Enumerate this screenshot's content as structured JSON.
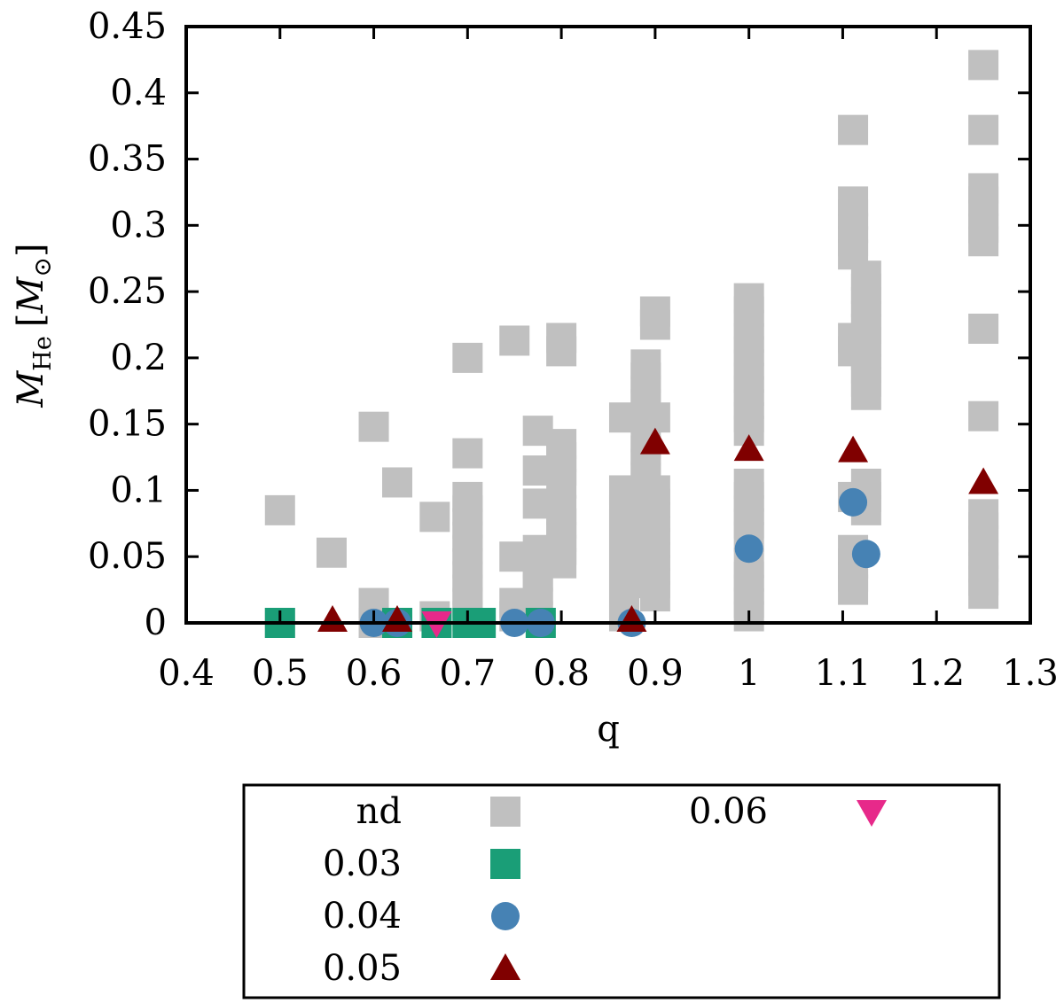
{
  "chart_data": {
    "type": "scatter",
    "xlabel": "q",
    "ylabel": {
      "main": "M",
      "sub": "He",
      "unit_open": "[",
      "unit": "M",
      "unit_sub": "⊙",
      "unit_close": "]"
    },
    "xlim": [
      0.4,
      1.3
    ],
    "ylim": [
      0,
      0.45
    ],
    "xticks": [
      0.4,
      0.5,
      0.6,
      0.7,
      0.8,
      0.9,
      1.0,
      1.1,
      1.2,
      1.3
    ],
    "xtick_labels": [
      "0.4",
      "0.5",
      "0.6",
      "0.7",
      "0.8",
      "0.9",
      "1",
      "1.1",
      "1.2",
      "1.3"
    ],
    "yticks": [
      0,
      0.05,
      0.1,
      0.15,
      0.2,
      0.25,
      0.3,
      0.35,
      0.4,
      0.45
    ],
    "ytick_labels": [
      "0",
      "0.05",
      "0.1",
      "0.15",
      "0.2",
      "0.25",
      "0.3",
      "0.35",
      "0.4",
      "0.45"
    ],
    "grid": false,
    "legend_position": "below",
    "series": [
      {
        "name": "nd",
        "marker": "square",
        "color": "#c0c0c0",
        "points": [
          [
            0.5,
            0.085
          ],
          [
            0.5,
            0.0
          ],
          [
            0.555,
            0.053
          ],
          [
            0.6,
            0.148
          ],
          [
            0.6,
            0.015
          ],
          [
            0.6,
            0.0
          ],
          [
            0.625,
            0.106
          ],
          [
            0.665,
            0.08
          ],
          [
            0.665,
            0.005
          ],
          [
            0.7,
            0.2
          ],
          [
            0.7,
            0.128
          ],
          [
            0.7,
            0.095
          ],
          [
            0.7,
            0.085
          ],
          [
            0.7,
            0.075
          ],
          [
            0.7,
            0.065
          ],
          [
            0.7,
            0.055
          ],
          [
            0.7,
            0.045
          ],
          [
            0.7,
            0.035
          ],
          [
            0.7,
            0.025
          ],
          [
            0.7,
            0.015
          ],
          [
            0.7,
            0.005
          ],
          [
            0.75,
            0.213
          ],
          [
            0.75,
            0.05
          ],
          [
            0.75,
            0.015
          ],
          [
            0.75,
            0.005
          ],
          [
            0.775,
            0.145
          ],
          [
            0.775,
            0.115
          ],
          [
            0.775,
            0.09
          ],
          [
            0.775,
            0.055
          ],
          [
            0.775,
            0.045
          ],
          [
            0.775,
            0.035
          ],
          [
            0.775,
            0.025
          ],
          [
            0.775,
            0.015
          ],
          [
            0.775,
            0.005
          ],
          [
            0.8,
            0.215
          ],
          [
            0.8,
            0.205
          ],
          [
            0.8,
            0.135
          ],
          [
            0.8,
            0.125
          ],
          [
            0.8,
            0.115
          ],
          [
            0.8,
            0.105
          ],
          [
            0.8,
            0.085
          ],
          [
            0.8,
            0.075
          ],
          [
            0.8,
            0.065
          ],
          [
            0.8,
            0.055
          ],
          [
            0.8,
            0.045
          ],
          [
            0.867,
            0.155
          ],
          [
            0.867,
            0.1
          ],
          [
            0.867,
            0.085
          ],
          [
            0.867,
            0.075
          ],
          [
            0.867,
            0.065
          ],
          [
            0.867,
            0.055
          ],
          [
            0.867,
            0.045
          ],
          [
            0.867,
            0.035
          ],
          [
            0.867,
            0.025
          ],
          [
            0.867,
            0.015
          ],
          [
            0.867,
            0.005
          ],
          [
            0.89,
            0.195
          ],
          [
            0.89,
            0.185
          ],
          [
            0.89,
            0.175
          ],
          [
            0.89,
            0.165
          ],
          [
            0.89,
            0.155
          ],
          [
            0.89,
            0.14
          ],
          [
            0.89,
            0.13
          ],
          [
            0.89,
            0.12
          ],
          [
            0.89,
            0.11
          ],
          [
            0.89,
            0.1
          ],
          [
            0.89,
            0.09
          ],
          [
            0.89,
            0.08
          ],
          [
            0.89,
            0.07
          ],
          [
            0.89,
            0.06
          ],
          [
            0.89,
            0.05
          ],
          [
            0.89,
            0.04
          ],
          [
            0.89,
            0.03
          ],
          [
            0.9,
            0.235
          ],
          [
            0.9,
            0.225
          ],
          [
            0.9,
            0.155
          ],
          [
            0.9,
            0.1
          ],
          [
            0.9,
            0.09
          ],
          [
            0.9,
            0.08
          ],
          [
            0.9,
            0.07
          ],
          [
            0.9,
            0.06
          ],
          [
            0.9,
            0.05
          ],
          [
            0.9,
            0.04
          ],
          [
            0.9,
            0.03
          ],
          [
            0.9,
            0.02
          ],
          [
            1.0,
            0.245
          ],
          [
            1.0,
            0.235
          ],
          [
            1.0,
            0.225
          ],
          [
            1.0,
            0.215
          ],
          [
            1.0,
            0.205
          ],
          [
            1.0,
            0.195
          ],
          [
            1.0,
            0.185
          ],
          [
            1.0,
            0.175
          ],
          [
            1.0,
            0.165
          ],
          [
            1.0,
            0.155
          ],
          [
            1.0,
            0.145
          ],
          [
            1.0,
            0.105
          ],
          [
            1.0,
            0.095
          ],
          [
            1.0,
            0.085
          ],
          [
            1.0,
            0.075
          ],
          [
            1.0,
            0.065
          ],
          [
            1.0,
            0.045
          ],
          [
            1.0,
            0.035
          ],
          [
            1.0,
            0.025
          ],
          [
            1.0,
            0.015
          ],
          [
            1.0,
            0.005
          ],
          [
            1.111,
            0.372
          ],
          [
            1.111,
            0.318
          ],
          [
            1.111,
            0.308
          ],
          [
            1.111,
            0.298
          ],
          [
            1.111,
            0.288
          ],
          [
            1.111,
            0.278
          ],
          [
            1.111,
            0.215
          ],
          [
            1.111,
            0.205
          ],
          [
            1.111,
            0.095
          ],
          [
            1.111,
            0.055
          ],
          [
            1.111,
            0.045
          ],
          [
            1.111,
            0.035
          ],
          [
            1.111,
            0.025
          ],
          [
            1.125,
            0.262
          ],
          [
            1.125,
            0.252
          ],
          [
            1.125,
            0.242
          ],
          [
            1.125,
            0.232
          ],
          [
            1.125,
            0.222
          ],
          [
            1.125,
            0.212
          ],
          [
            1.125,
            0.202
          ],
          [
            1.125,
            0.192
          ],
          [
            1.125,
            0.182
          ],
          [
            1.125,
            0.172
          ],
          [
            1.125,
            0.105
          ],
          [
            1.125,
            0.095
          ],
          [
            1.125,
            0.085
          ],
          [
            1.25,
            0.421
          ],
          [
            1.25,
            0.372
          ],
          [
            1.25,
            0.328
          ],
          [
            1.25,
            0.318
          ],
          [
            1.25,
            0.308
          ],
          [
            1.25,
            0.298
          ],
          [
            1.25,
            0.288
          ],
          [
            1.25,
            0.222
          ],
          [
            1.25,
            0.156
          ],
          [
            1.25,
            0.082
          ],
          [
            1.25,
            0.072
          ],
          [
            1.25,
            0.062
          ],
          [
            1.25,
            0.052
          ],
          [
            1.25,
            0.042
          ],
          [
            1.25,
            0.032
          ],
          [
            1.25,
            0.022
          ]
        ]
      },
      {
        "name": "0.03",
        "marker": "square",
        "color": "#1a9e77",
        "points": [
          [
            0.5,
            0.0
          ],
          [
            0.625,
            0.0
          ],
          [
            0.667,
            0.0
          ],
          [
            0.7,
            0.0
          ],
          [
            0.714,
            0.0
          ],
          [
            0.778,
            0.0
          ]
        ]
      },
      {
        "name": "0.04",
        "marker": "circle",
        "color": "#4682b4",
        "points": [
          [
            0.6,
            0.0
          ],
          [
            0.625,
            0.0
          ],
          [
            0.75,
            0.0
          ],
          [
            0.778,
            0.0
          ],
          [
            0.875,
            0.0
          ],
          [
            1.0,
            0.056
          ],
          [
            1.111,
            0.091
          ],
          [
            1.125,
            0.052
          ]
        ]
      },
      {
        "name": "0.05",
        "marker": "triangle-up",
        "color": "#800000",
        "points": [
          [
            0.556,
            0.002
          ],
          [
            0.625,
            0.002
          ],
          [
            0.875,
            0.002
          ],
          [
            0.9,
            0.136
          ],
          [
            1.0,
            0.131
          ],
          [
            1.111,
            0.13
          ],
          [
            1.25,
            0.106
          ]
        ]
      },
      {
        "name": "0.06",
        "marker": "triangle-down",
        "color": "#e7298a",
        "points": [
          [
            0.667,
            0.0
          ]
        ]
      }
    ]
  }
}
